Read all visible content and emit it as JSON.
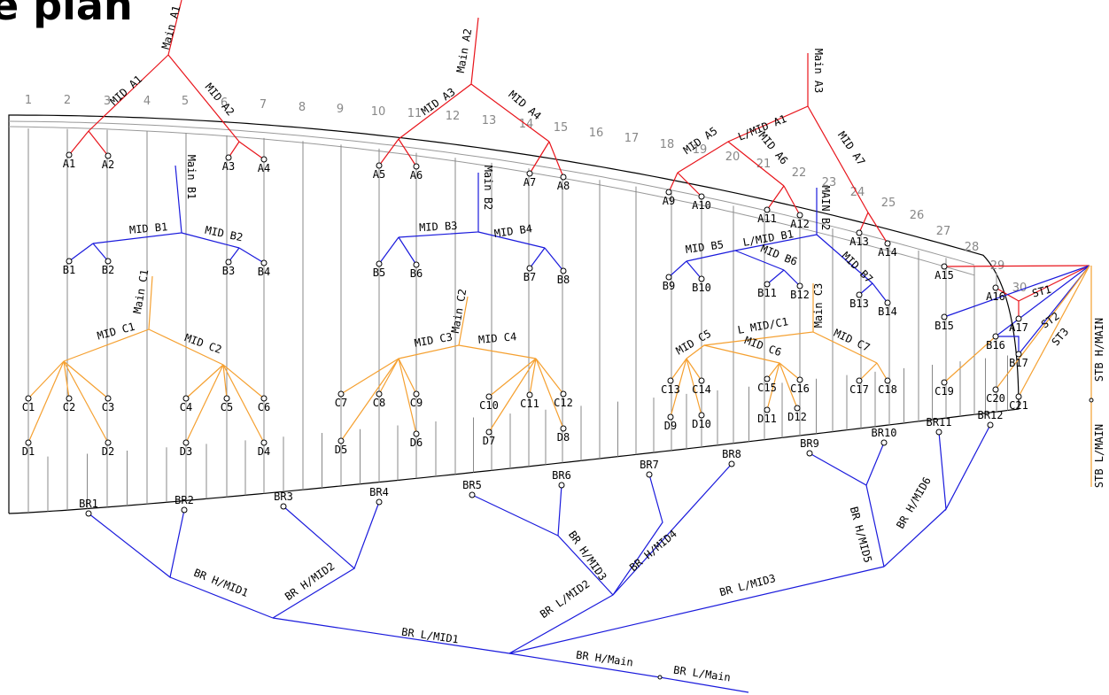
{
  "title": "e plan",
  "frames": [
    "1",
    "2",
    "3",
    "4",
    "5",
    "6",
    "7",
    "8",
    "9",
    "10",
    "11",
    "12",
    "13",
    "14",
    "15",
    "16",
    "17",
    "18",
    "19",
    "20",
    "21",
    "22",
    "23",
    "24",
    "25",
    "26",
    "27",
    "28",
    "29",
    "30"
  ],
  "nodes": {
    "a": [
      "A1",
      "A2",
      "A3",
      "A4",
      "A5",
      "A6",
      "A7",
      "A8",
      "A9",
      "A10",
      "A11",
      "A12",
      "A13",
      "A14",
      "A15",
      "A16",
      "A17"
    ],
    "b": [
      "B1",
      "B2",
      "B3",
      "B4",
      "B5",
      "B6",
      "B7",
      "B8",
      "B9",
      "B10",
      "B11",
      "B12",
      "B13",
      "B14",
      "B15",
      "B16",
      "B17"
    ],
    "c": [
      "C1",
      "C2",
      "C3",
      "C4",
      "C5",
      "C6",
      "C7",
      "C8",
      "C9",
      "C10",
      "C11",
      "C12",
      "C13",
      "C14",
      "C15",
      "C16",
      "C17",
      "C18",
      "C19",
      "C20",
      "C21"
    ],
    "d": [
      "D1",
      "D2",
      "D3",
      "D4",
      "D5",
      "D6",
      "D7",
      "D8",
      "D9",
      "D10",
      "D11",
      "D12"
    ],
    "br": [
      "BR1",
      "BR2",
      "BR3",
      "BR4",
      "BR5",
      "BR6",
      "BR7",
      "BR8",
      "BR9",
      "BR10",
      "BR11",
      "BR12"
    ]
  },
  "branches": [
    "Main A1",
    "MID A1",
    "MID A2",
    "Main A2",
    "MID A3",
    "MID A4",
    "Main A3",
    "L/MID A1",
    "MID A5",
    "MID A6",
    "MID A7",
    "Main B1",
    "MID B1",
    "MID B2",
    "Main B2",
    "MID B3",
    "MID B4",
    "MAIN B2",
    "MID B5",
    "L/MID B1",
    "MID B6",
    "MID B7",
    "Main C1",
    "MID C1",
    "MID C2",
    "Main C2",
    "MID C3",
    "MID C4",
    "Main C3",
    "L MID/C1",
    "MID C5",
    "MID C6",
    "MID C7",
    "BR H/MID1",
    "BR H/MID2",
    "BR H/MID3",
    "BR H/MID4",
    "BR H/MID5",
    "BR H/MID6",
    "BR L/MID1",
    "BR L/MID2",
    "BR L/MID3",
    "BR H/Main",
    "BR L/Main",
    "STB H/MAIN",
    "STB L/MAIN",
    "ST1",
    "ST2",
    "ST3"
  ]
}
